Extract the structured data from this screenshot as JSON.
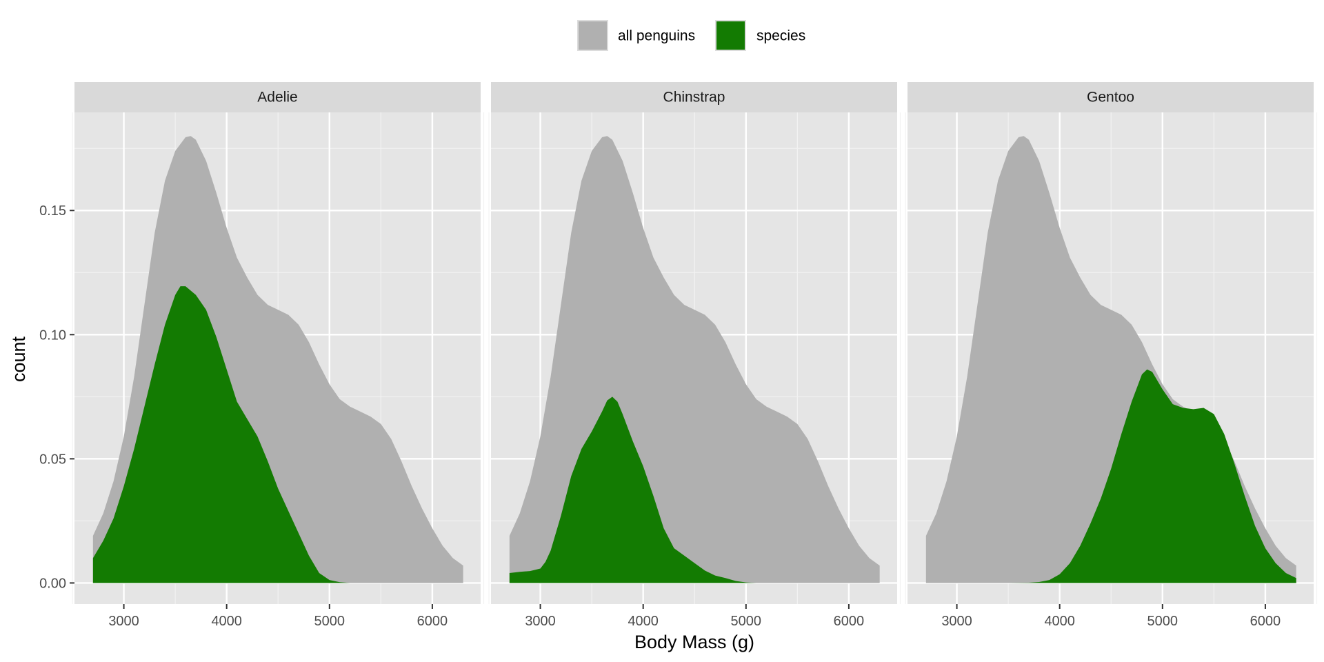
{
  "chart_data": {
    "type": "area",
    "facets": [
      "Adelie",
      "Chinstrap",
      "Gentoo"
    ],
    "xlabel": "Body Mass (g)",
    "ylabel": "count",
    "xlim": [
      2520,
      6470
    ],
    "ylim": [
      -0.0085,
      0.1895
    ],
    "x_ticks": [
      3000,
      4000,
      5000,
      6000
    ],
    "x_tick_labels": [
      "3000",
      "4000",
      "5000",
      "6000"
    ],
    "y_ticks": [
      0,
      0.05,
      0.1,
      0.15
    ],
    "y_tick_labels": [
      "0.00",
      "0.05",
      "0.10",
      "0.15"
    ],
    "grid": true,
    "legend": {
      "position": "top",
      "entries": [
        {
          "key": "all",
          "label": "all penguins",
          "color": "#b0b0b0"
        },
        {
          "key": "species",
          "label": "species",
          "color": "#137b02"
        }
      ]
    },
    "series": [
      {
        "key": "all",
        "facet": "all",
        "color": "#b0b0b0",
        "x": [
          2700,
          2800,
          2900,
          3000,
          3100,
          3200,
          3300,
          3400,
          3500,
          3600,
          3650,
          3700,
          3800,
          3900,
          4000,
          4100,
          4200,
          4300,
          4400,
          4500,
          4600,
          4700,
          4800,
          4900,
          5000,
          5100,
          5200,
          5300,
          5400,
          5500,
          5600,
          5700,
          5800,
          5900,
          6000,
          6100,
          6200,
          6300
        ],
        "y": [
          0.019,
          0.028,
          0.041,
          0.059,
          0.083,
          0.112,
          0.141,
          0.162,
          0.174,
          0.1795,
          0.18,
          0.1785,
          0.17,
          0.157,
          0.143,
          0.131,
          0.123,
          0.116,
          0.112,
          0.11,
          0.108,
          0.104,
          0.097,
          0.088,
          0.08,
          0.074,
          0.071,
          0.069,
          0.067,
          0.064,
          0.058,
          0.049,
          0.039,
          0.03,
          0.022,
          0.015,
          0.01,
          0.007
        ]
      },
      {
        "key": "species",
        "facet": "Adelie",
        "color": "#137b02",
        "x": [
          2700,
          2800,
          2900,
          3000,
          3100,
          3200,
          3300,
          3400,
          3500,
          3550,
          3600,
          3700,
          3800,
          3900,
          4000,
          4100,
          4200,
          4300,
          4400,
          4500,
          4600,
          4700,
          4800,
          4900,
          5000,
          5100,
          5200,
          5300,
          5400
        ],
        "y": [
          0.01,
          0.017,
          0.026,
          0.039,
          0.054,
          0.071,
          0.088,
          0.104,
          0.116,
          0.1195,
          0.1195,
          0.116,
          0.11,
          0.099,
          0.086,
          0.073,
          0.066,
          0.059,
          0.049,
          0.038,
          0.029,
          0.02,
          0.011,
          0.004,
          0.0012,
          0.0003,
          0,
          0,
          0
        ]
      },
      {
        "key": "species",
        "facet": "Chinstrap",
        "color": "#137b02",
        "x": [
          2700,
          2800,
          2900,
          3000,
          3050,
          3100,
          3200,
          3300,
          3400,
          3500,
          3600,
          3650,
          3700,
          3750,
          3800,
          3900,
          4000,
          4100,
          4200,
          4300,
          4400,
          4500,
          4600,
          4700,
          4800,
          4900,
          5000,
          5100
        ],
        "y": [
          0.004,
          0.0045,
          0.0048,
          0.0058,
          0.0085,
          0.013,
          0.027,
          0.043,
          0.054,
          0.061,
          0.069,
          0.0735,
          0.075,
          0.073,
          0.068,
          0.057,
          0.047,
          0.035,
          0.022,
          0.014,
          0.011,
          0.008,
          0.005,
          0.003,
          0.002,
          0.0008,
          0.0002,
          0
        ]
      },
      {
        "key": "species",
        "facet": "Gentoo",
        "color": "#137b02",
        "x": [
          3500,
          3700,
          3800,
          3900,
          4000,
          4100,
          4200,
          4300,
          4400,
          4500,
          4600,
          4700,
          4800,
          4850,
          4900,
          5000,
          5100,
          5200,
          5300,
          5400,
          5500,
          5600,
          5700,
          5800,
          5900,
          6000,
          6100,
          6200,
          6300
        ],
        "y": [
          0,
          0.0001,
          0.0004,
          0.0012,
          0.0035,
          0.008,
          0.015,
          0.024,
          0.034,
          0.046,
          0.06,
          0.073,
          0.084,
          0.086,
          0.085,
          0.078,
          0.072,
          0.0705,
          0.07,
          0.0705,
          0.068,
          0.06,
          0.048,
          0.035,
          0.023,
          0.014,
          0.008,
          0.004,
          0.002
        ]
      }
    ]
  }
}
